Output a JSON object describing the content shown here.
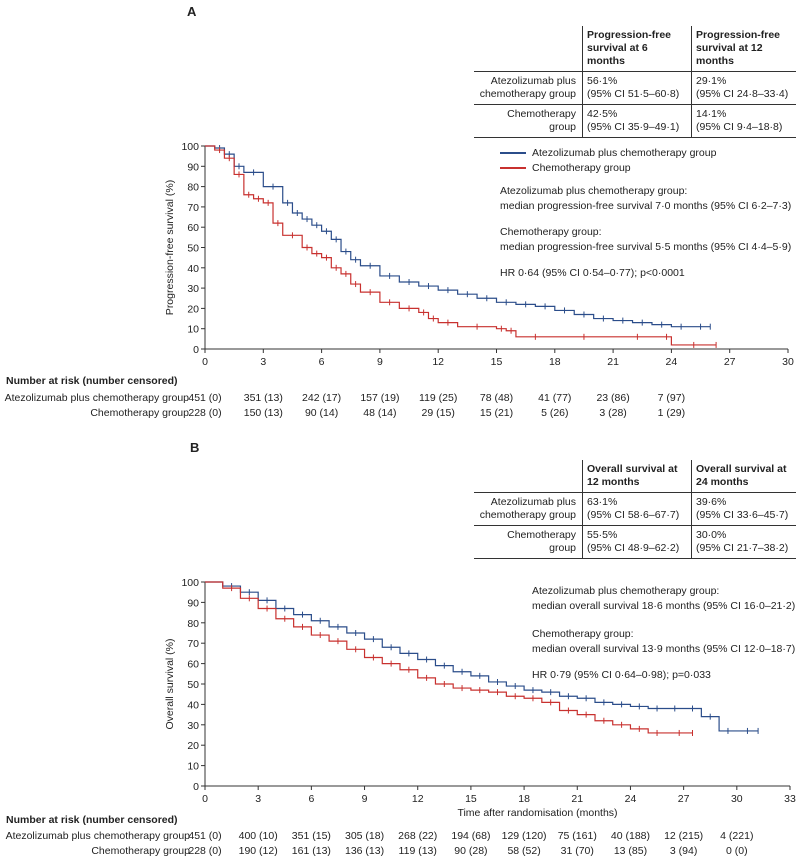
{
  "panel_a": {
    "letter": "A",
    "table": {
      "col1": "Progression-free survival at 6 months",
      "col2": "Progression-free survival at 12 months",
      "rows": [
        {
          "label": "Atezolizumab plus chemotherapy group",
          "v1a": "56·1%",
          "v1b": "(95% CI 51·5–60·8)",
          "v2a": "29·1%",
          "v2b": "(95% CI 24·8–33·4)"
        },
        {
          "label": "Chemotherapy group",
          "v1a": "42·5%",
          "v1b": "(95% CI 35·9–49·1)",
          "v2a": "14·1%",
          "v2b": "(95% CI 9·4–18·8)"
        }
      ]
    },
    "legend": [
      "Atezolizumab plus chemotherapy group",
      "Chemotherapy group"
    ],
    "notes": [
      "Atezolizumab plus chemotherapy group:",
      "median progression-free survival 7·0 months (95% CI 6·2–7·3)",
      "Chemotherapy group:",
      "median progression-free survival 5·5 months (95% CI 4·4–5·9)",
      "HR 0·64 (95% CI 0·54–0·77); p<0·0001"
    ],
    "risk": {
      "header": "Number at risk (number censored)",
      "rows": [
        {
          "label": "Atezolizumab plus chemotherapy group",
          "values": [
            "451 (0)",
            "351 (13)",
            "242 (17)",
            "157 (19)",
            "119 (25)",
            "78 (48)",
            "41 (77)",
            "23 (86)",
            "7 (97)"
          ]
        },
        {
          "label": "Chemotherapy group",
          "values": [
            "228 (0)",
            "150 (13)",
            "90 (14)",
            "48 (14)",
            "29 (15)",
            "15 (21)",
            "5 (26)",
            "3 (28)",
            "1 (29)"
          ]
        }
      ]
    }
  },
  "panel_b": {
    "letter": "B",
    "table": {
      "col1": "Overall survival at 12 months",
      "col2": "Overall survival at 24 months",
      "rows": [
        {
          "label": "Atezolizumab plus chemotherapy group",
          "v1a": "63·1%",
          "v1b": "(95% CI 58·6–67·7)",
          "v2a": "39·6%",
          "v2b": "(95% CI 33·6–45·7)"
        },
        {
          "label": "Chemotherapy group",
          "v1a": "55·5%",
          "v1b": "(95% CI 48·9–62·2)",
          "v2a": "30·0%",
          "v2b": "(95% CI 21·7–38·2)"
        }
      ]
    },
    "notes": [
      "Atezolizumab plus chemotherapy group:",
      "median overall survival 18·6 months (95% CI 16·0–21·2)",
      "Chemotherapy group:",
      "median overall survival 13·9 months (95% CI 12·0–18·7)",
      "HR 0·79 (95% CI 0·64–0·98); p=0·033"
    ],
    "risk": {
      "header": "Number at risk (number censored)",
      "rows": [
        {
          "label": "Atezolizumab plus chemotherapy group",
          "values": [
            "451 (0)",
            "400 (10)",
            "351 (15)",
            "305 (18)",
            "268 (22)",
            "194 (68)",
            "129 (120)",
            "75 (161)",
            "40 (188)",
            "12 (215)",
            "4 (221)"
          ]
        },
        {
          "label": "Chemotherapy group",
          "values": [
            "228 (0)",
            "190 (12)",
            "161 (13)",
            "136 (13)",
            "119 (13)",
            "90 (28)",
            "58 (52)",
            "31 (70)",
            "13 (85)",
            "3 (94)",
            "0 (0)"
          ]
        }
      ]
    }
  },
  "colors": {
    "atezo": "#2b4d8a",
    "chemo": "#c8312f"
  },
  "chart_data": [
    {
      "type": "line",
      "ylabel": "Progression-free survival  (%)",
      "xlabel": "",
      "xlim": [
        0,
        30
      ],
      "ylim": [
        0,
        100
      ],
      "xticks": [
        0,
        3,
        6,
        9,
        12,
        15,
        18,
        21,
        24,
        27,
        30
      ],
      "yticks": [
        0,
        10,
        20,
        30,
        40,
        50,
        60,
        70,
        80,
        90,
        100
      ],
      "series": [
        {
          "name": "Atezolizumab plus chemotherapy group",
          "x": [
            0,
            0.5,
            1,
            1.5,
            2,
            3,
            4,
            4.5,
            5,
            5.5,
            6,
            6.5,
            7,
            7.5,
            8,
            9,
            10,
            11,
            12,
            13,
            14,
            15,
            16,
            17,
            18,
            19,
            20,
            21,
            22,
            23,
            24,
            25,
            26
          ],
          "y": [
            100,
            99,
            96,
            90,
            87,
            80,
            72,
            67,
            64,
            61,
            58,
            54,
            48,
            44,
            41,
            36,
            33,
            31,
            29,
            27,
            25,
            23,
            22,
            21,
            19,
            17,
            15,
            14,
            13,
            12,
            11,
            11,
            11
          ]
        },
        {
          "name": "Chemotherapy group",
          "x": [
            0,
            0.5,
            1,
            1.5,
            2,
            2.5,
            3,
            3.5,
            4,
            5,
            5.5,
            6,
            6.5,
            7,
            7.5,
            8,
            9,
            10,
            11,
            11.5,
            12,
            13,
            15,
            15.5,
            16,
            18,
            21,
            23.5,
            24,
            26.3
          ],
          "y": [
            100,
            98,
            94,
            86,
            76,
            74,
            72,
            62,
            56,
            50,
            47,
            45,
            40,
            37,
            32,
            28,
            23,
            20,
            18,
            15,
            13,
            11,
            10,
            9,
            6,
            6,
            6,
            6,
            2,
            2
          ]
        }
      ]
    },
    {
      "type": "line",
      "ylabel": "Overall survival  (%)",
      "xlabel": "Time after randomisation (months)",
      "xlim": [
        0,
        33
      ],
      "ylim": [
        0,
        100
      ],
      "xticks": [
        0,
        3,
        6,
        9,
        12,
        15,
        18,
        21,
        24,
        27,
        30,
        33
      ],
      "yticks": [
        0,
        10,
        20,
        30,
        40,
        50,
        60,
        70,
        80,
        90,
        100
      ],
      "series": [
        {
          "name": "Atezolizumab plus chemotherapy group",
          "x": [
            0,
            1,
            2,
            3,
            4,
            5,
            6,
            7,
            8,
            9,
            10,
            11,
            12,
            13,
            14,
            15,
            16,
            17,
            18,
            19,
            20,
            21,
            22,
            23,
            24,
            25,
            26,
            27,
            28,
            29,
            30,
            31.2
          ],
          "y": [
            100,
            98,
            95,
            91,
            87,
            84,
            81,
            78,
            75,
            72,
            68,
            65,
            62,
            59,
            56,
            54,
            51,
            49,
            47,
            46,
            44,
            43,
            41,
            40,
            39,
            38,
            38,
            38,
            34,
            27,
            27,
            27
          ]
        },
        {
          "name": "Chemotherapy group",
          "x": [
            0,
            1,
            2,
            3,
            4,
            5,
            6,
            7,
            8,
            9,
            10,
            11,
            12,
            13,
            14,
            15,
            16,
            17,
            18,
            19,
            20,
            21,
            22,
            23,
            24,
            25,
            26,
            27.5
          ],
          "y": [
            100,
            97,
            92,
            87,
            82,
            78,
            74,
            71,
            67,
            63,
            60,
            57,
            53,
            50,
            48,
            47,
            46,
            44,
            43,
            41,
            37,
            35,
            32,
            30,
            28,
            26,
            26,
            26
          ]
        }
      ]
    }
  ]
}
